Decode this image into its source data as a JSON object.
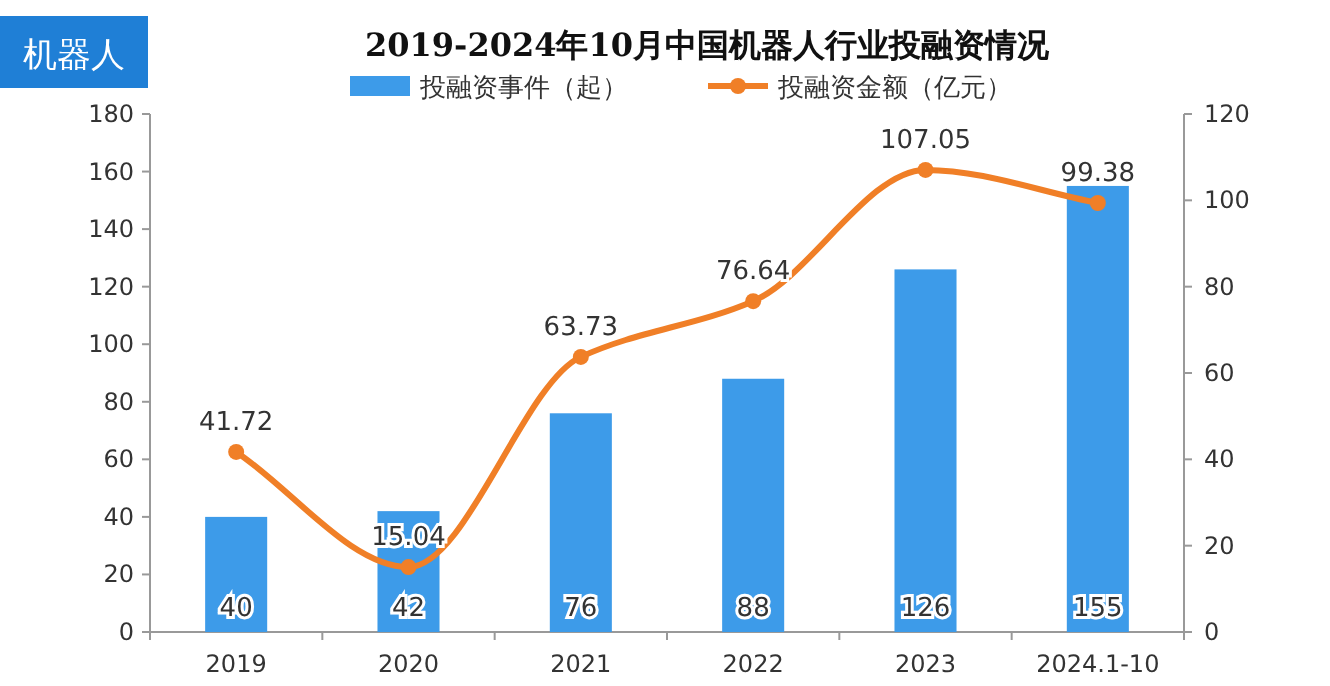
{
  "chart_data": {
    "type": "bar",
    "title": "2019-2024年10月中国机器人行业投融资情况",
    "annotations": [
      "机器人"
    ],
    "categories": [
      "2019",
      "2020",
      "2021",
      "2022",
      "2023",
      "2024.1-10"
    ],
    "series": [
      {
        "name": "投融资事件（起）",
        "color": "#3d9be9",
        "values": [
          40,
          42,
          76,
          88,
          126,
          155
        ]
      },
      {
        "name": "投融资金额（亿元）",
        "type": "line",
        "axis": "y2",
        "color": "#f07f27",
        "marker": "circle",
        "values": [
          41.72,
          15.04,
          63.73,
          76.64,
          107.05,
          99.38
        ]
      }
    ],
    "ylim": [
      0,
      180
    ],
    "yticks": [
      0,
      20,
      40,
      60,
      80,
      100,
      120,
      140,
      160,
      180
    ],
    "y2lim": [
      0,
      120
    ],
    "y2ticks": [
      0,
      20,
      40,
      60,
      80,
      100,
      120
    ],
    "legend": "top",
    "data_labels": true
  }
}
